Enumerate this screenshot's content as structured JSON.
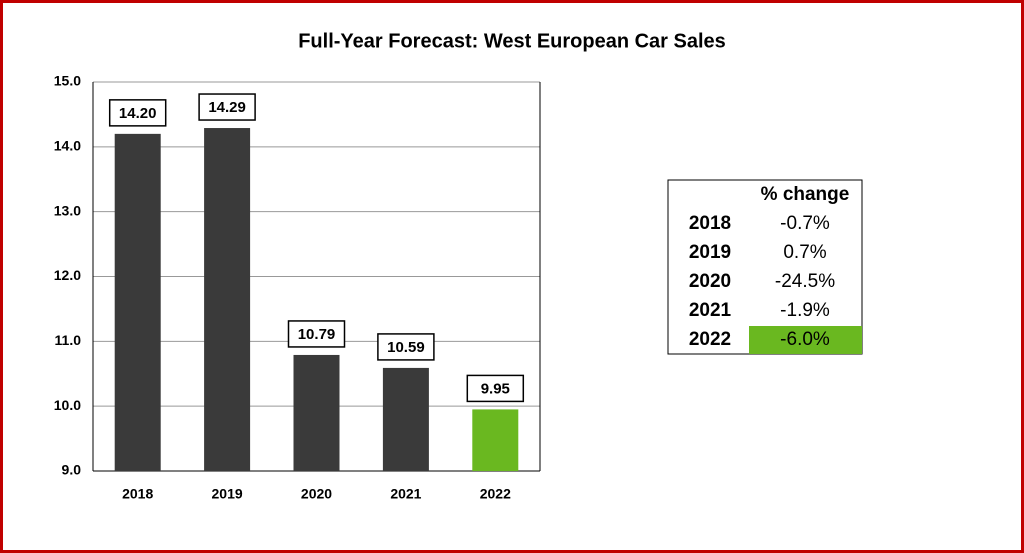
{
  "chart_data": {
    "type": "bar",
    "title": "Full-Year Forecast: West European Car Sales",
    "categories": [
      "2018",
      "2019",
      "2020",
      "2021",
      "2022"
    ],
    "values": [
      14.2,
      14.29,
      10.79,
      10.59,
      9.95
    ],
    "value_labels": [
      "14.20",
      "14.29",
      "10.79",
      "10.59",
      "9.95"
    ],
    "colors": [
      "#3a3a3a",
      "#3a3a3a",
      "#3a3a3a",
      "#3a3a3a",
      "#6ab820"
    ],
    "ylim": [
      9,
      15
    ],
    "yticks": [
      {
        "value": 9,
        "label": "9.0"
      },
      {
        "value": 10,
        "label": "10.0"
      },
      {
        "value": 11,
        "label": "11.0"
      },
      {
        "value": 12,
        "label": "12.0"
      },
      {
        "value": 13,
        "label": "13.0"
      },
      {
        "value": 14,
        "label": "14.0"
      },
      {
        "value": 15,
        "label": "15.0"
      }
    ],
    "grid": true
  },
  "table": {
    "header": "% change",
    "rows": [
      [
        "2018",
        "-0.7%"
      ],
      [
        "2019",
        "0.7%"
      ],
      [
        "2020",
        "-24.5%"
      ],
      [
        "2021",
        "-1.9%"
      ],
      [
        "2022",
        "-6.0%"
      ]
    ],
    "highlight_row": 4,
    "highlight_color": "#6ab820"
  }
}
